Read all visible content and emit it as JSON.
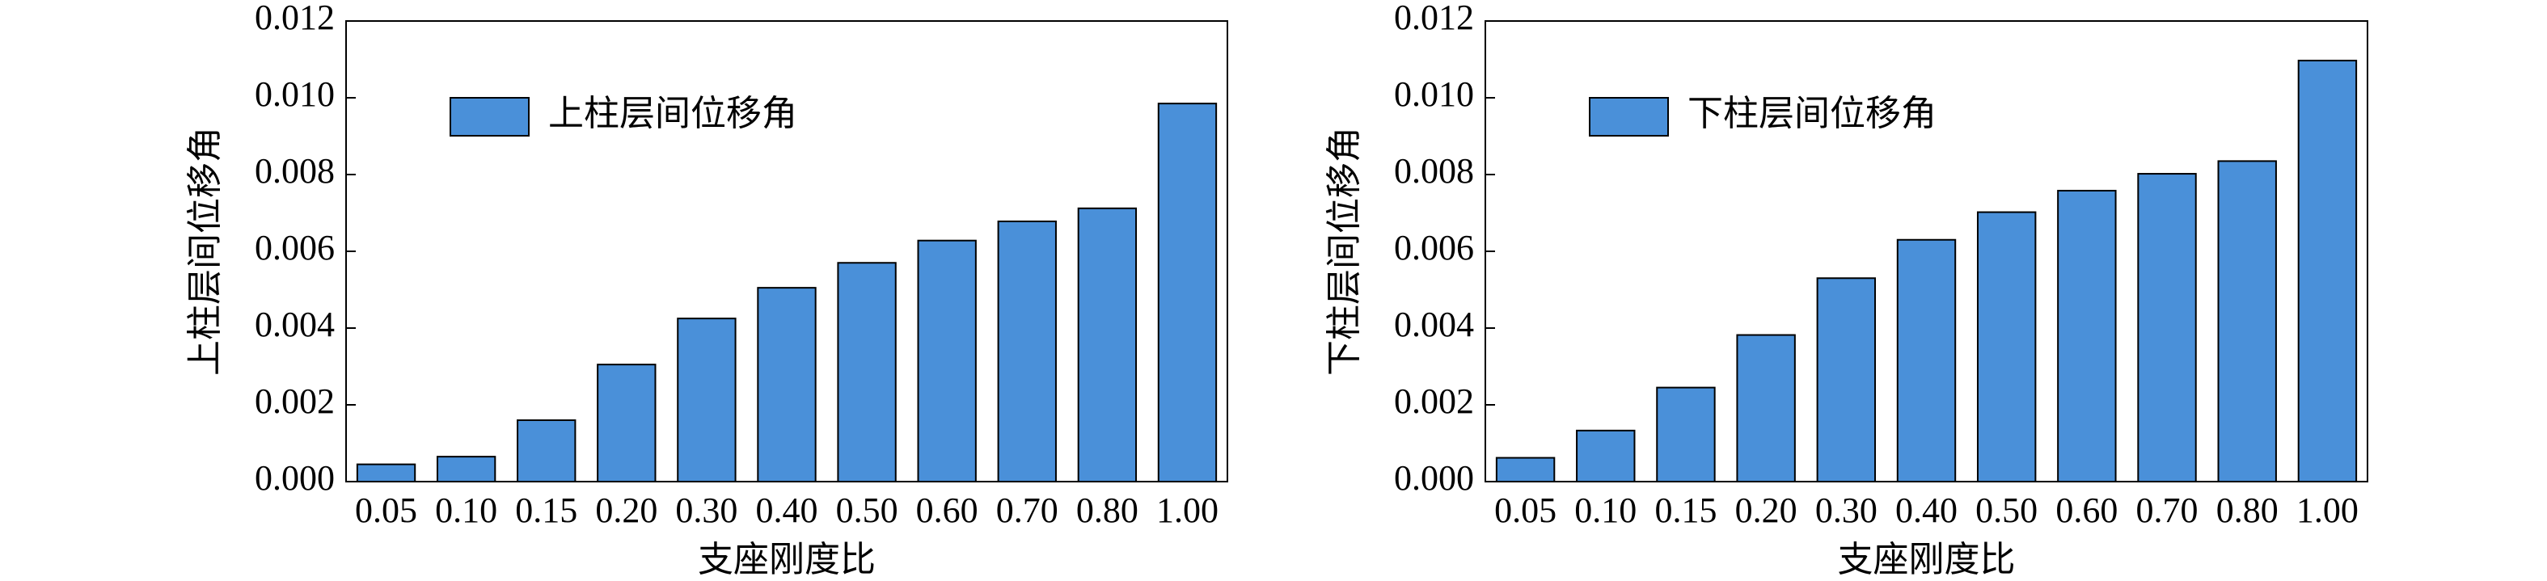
{
  "chart_data": [
    {
      "type": "bar",
      "xlabel": "支座刚度比",
      "ylabel": "上柱层间位移角",
      "categories": [
        "0.05",
        "0.10",
        "0.15",
        "0.20",
        "0.30",
        "0.40",
        "0.50",
        "0.60",
        "0.70",
        "0.80",
        "1.00"
      ],
      "series": [
        {
          "name": "上柱层间位移角",
          "color": "#4a90d9",
          "values": [
            0.00045,
            0.00065,
            0.0016,
            0.00305,
            0.00425,
            0.00505,
            0.0057,
            0.00628,
            0.00678,
            0.00712,
            0.00985
          ]
        }
      ],
      "ylim": [
        0,
        0.012
      ],
      "yticks": [
        {
          "value": 0,
          "label": "0.000"
        },
        {
          "value": 0.002,
          "label": "0.002"
        },
        {
          "value": 0.004,
          "label": "0.004"
        },
        {
          "value": 0.006,
          "label": "0.006"
        },
        {
          "value": 0.008,
          "label": "0.008"
        },
        {
          "value": 0.01,
          "label": "0.010"
        },
        {
          "value": 0.012,
          "label": "0.012"
        }
      ],
      "grid": false,
      "legend": "upper left"
    },
    {
      "type": "bar",
      "xlabel": "支座刚度比",
      "ylabel": "下柱层间位移角",
      "categories": [
        "0.05",
        "0.10",
        "0.15",
        "0.20",
        "0.30",
        "0.40",
        "0.50",
        "0.60",
        "0.70",
        "0.80",
        "1.00"
      ],
      "series": [
        {
          "name": "下柱层间位移角",
          "color": "#4a90d9",
          "values": [
            0.00062,
            0.00133,
            0.00245,
            0.00382,
            0.0053,
            0.0063,
            0.00702,
            0.00758,
            0.00802,
            0.00835,
            0.01097
          ]
        }
      ],
      "ylim": [
        0,
        0.012
      ],
      "yticks": [
        {
          "value": 0,
          "label": "0.000"
        },
        {
          "value": 0.002,
          "label": "0.002"
        },
        {
          "value": 0.004,
          "label": "0.004"
        },
        {
          "value": 0.006,
          "label": "0.006"
        },
        {
          "value": 0.008,
          "label": "0.008"
        },
        {
          "value": 0.01,
          "label": "0.010"
        },
        {
          "value": 0.012,
          "label": "0.012"
        }
      ],
      "grid": false,
      "legend": "upper left"
    }
  ]
}
